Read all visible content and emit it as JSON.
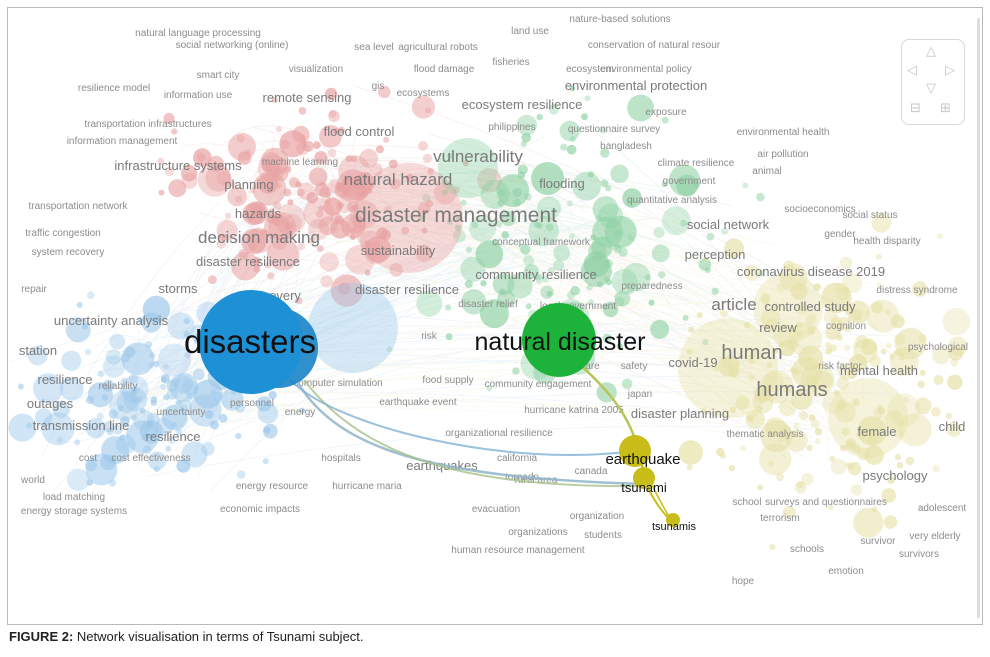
{
  "caption": {
    "label": "FIGURE 2:",
    "text": "Network visualisation in terms of Tsunami subject."
  },
  "controls": {
    "up": "△",
    "left": "◁",
    "right": "▷",
    "down": "▽",
    "zoom_out": "⊟",
    "zoom_in": "⊞"
  },
  "colors": {
    "red_cluster": "#e8a1a1",
    "green_cluster": "#8fd1a4",
    "blue_cluster": "#9cc7ea",
    "yellow_cluster": "#e6e0a6",
    "disasters_node": "#1e90d6",
    "natural_disaster_node": "#1db33a",
    "tsunami_nodes": "#c9bd1a"
  },
  "highlighted": [
    {
      "label": "disasters",
      "color": "#1e90d6"
    },
    {
      "label": "natural disaster",
      "color": "#1db33a"
    },
    {
      "label": "earthquake",
      "color": "#c9bd1a"
    },
    {
      "label": "tsunami",
      "color": "#c9bd1a"
    },
    {
      "label": "tsunamis",
      "color": "#c9bd1a"
    }
  ],
  "background_labels": [
    "natural language processing",
    "social networking (online)",
    "sea level",
    "agricultural robots",
    "land use",
    "nature-based solutions",
    "conservation of natural resour",
    "smart city",
    "visualization",
    "flood damage",
    "fisheries",
    "ecosystem",
    "environmental policy",
    "resilience model",
    "information use",
    "gis",
    "ecosystems",
    "environmental protection",
    "remote sensing",
    "ecosystem resilience",
    "exposure",
    "transportation infrastructures",
    "philippines",
    "questionnaire survey",
    "environmental health",
    "information management",
    "flood control",
    "bangladesh",
    "air pollution",
    "infrastructure systems",
    "machine learning",
    "vulnerability",
    "climate resilience",
    "animal",
    "natural hazard",
    "government",
    "planning",
    "flooding",
    "quantitative analysis",
    "socioeconomics",
    "transportation network",
    "hazards",
    "disaster management",
    "social status",
    "traffic congestion",
    "social network",
    "gender",
    "decision making",
    "system recovery",
    "sustainability",
    "conceptual framework",
    "health disparity",
    "perception",
    "disaster resilience",
    "community resilience",
    "coronavirus disease 2019",
    "storms",
    "recovery",
    "disaster resilience",
    "preparedness",
    "distress syndrome",
    "repair",
    "disaster relief",
    "local government",
    "article",
    "controlled study",
    "uncertainty analysis",
    "review",
    "cognition",
    "risk",
    "covid-19",
    "human",
    "psychological",
    "station",
    "health care",
    "resilience",
    "buildings",
    "computer simulation",
    "food supply",
    "community engagement",
    "safety",
    "risk factor",
    "mental health",
    "reliability",
    "japan",
    "humans",
    "outages",
    "personnel",
    "earthquake event",
    "uncertainty",
    "energy",
    "disaster planning",
    "hurricane katrina 2005",
    "transmission line",
    "resilience",
    "organizational resilience",
    "thematic analysis",
    "female",
    "child",
    "cost",
    "cost effectiveness",
    "hospitals",
    "california",
    "earthquakes",
    "rural area",
    "world",
    "canada",
    "tornado",
    "psychology",
    "energy resource",
    "hurricane maria",
    "load matching",
    "school",
    "surveys and questionnaires",
    "adolescent",
    "energy storage systems",
    "economic impacts",
    "evacuation",
    "organization",
    "terrorism",
    "organizations",
    "students",
    "very elderly",
    "survivor",
    "schools",
    "survivors",
    "human resource management",
    "emotion",
    "hope"
  ]
}
